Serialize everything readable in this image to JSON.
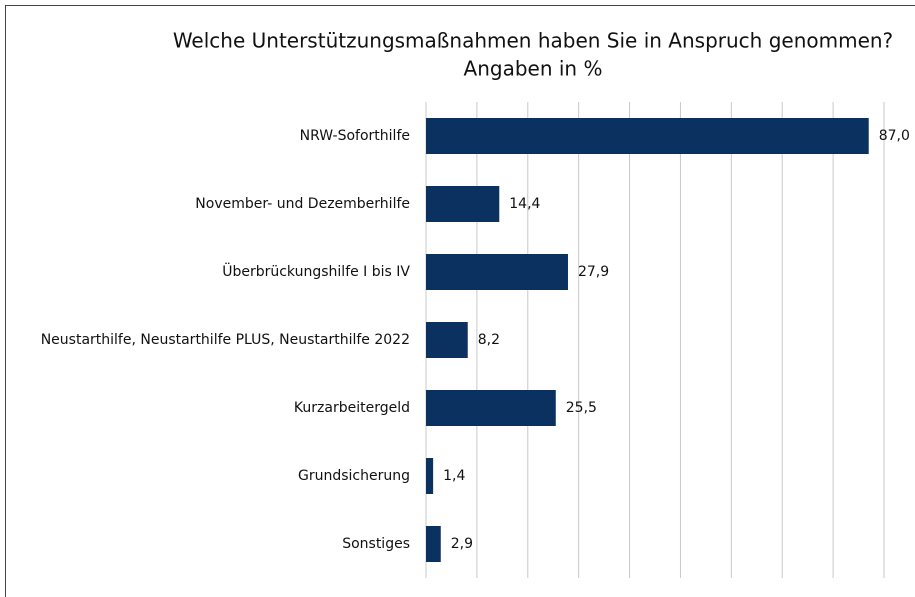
{
  "chart_data": {
    "type": "bar",
    "orientation": "horizontal",
    "title": [
      "Welche Unterstützungsmaßnahmen haben Sie in Anspruch genommen?",
      "Angaben in %"
    ],
    "categories": [
      "NRW-Soforthilfe",
      "November- und Dezemberhilfe",
      "Überbrückungshilfe I bis IV",
      "Neustarthilfe, Neustarthilfe PLUS, Neustarthilfe 2022",
      "Kurzarbeitergeld",
      "Grundsicherung",
      "Sonstiges"
    ],
    "values": [
      87.0,
      14.4,
      27.9,
      8.2,
      25.5,
      1.4,
      2.9
    ],
    "value_labels": [
      "87,0",
      "14,4",
      "27,9",
      "8,2",
      "25,5",
      "1,4",
      "2,9"
    ],
    "color": "#0b3160",
    "xlim": [
      0,
      90
    ],
    "xticks": [
      0,
      10,
      20,
      30,
      40,
      50,
      60,
      70,
      80,
      90
    ],
    "grid": true
  }
}
